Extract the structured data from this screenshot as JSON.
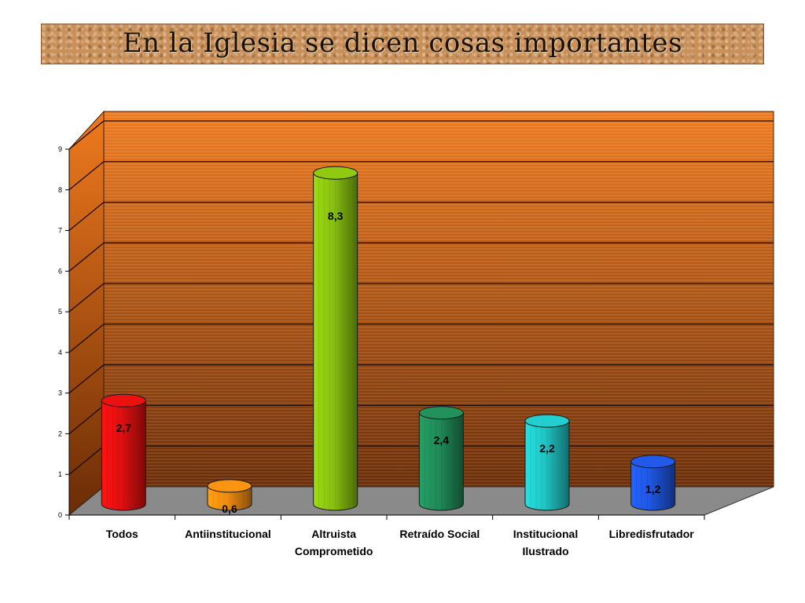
{
  "slide": {
    "title": "En la Iglesia se dicen cosas importantes"
  },
  "chart_data": {
    "type": "bar",
    "title": "",
    "xlabel": "",
    "ylabel": "",
    "categories": [
      "Todos",
      "Antiinstitucional",
      "Altruista Comprometido",
      "Retraído Social",
      "Institucional Ilustrado",
      "Libredisfrutador"
    ],
    "category_lines": [
      [
        "Todos"
      ],
      [
        "Antiinstitucional"
      ],
      [
        "Altruista",
        "Comprometido"
      ],
      [
        "Retraído Social"
      ],
      [
        "Institucional",
        "Ilustrado"
      ],
      [
        "Libredisfrutador"
      ]
    ],
    "values": [
      2.7,
      0.6,
      8.3,
      2.4,
      2.2,
      1.2
    ],
    "value_labels": [
      "2,7",
      "0,6",
      "8,3",
      "2,4",
      "2,2",
      "1,2"
    ],
    "bar_colors": [
      "#e01010",
      "#f08c10",
      "#88c010",
      "#208a58",
      "#20c4c4",
      "#1f56e0"
    ],
    "ylim": [
      0,
      9
    ],
    "yticks": [
      "0",
      "1",
      "2",
      "3",
      "4",
      "5",
      "6",
      "7",
      "8",
      "9"
    ],
    "grid": true,
    "style": "3d-cylinder",
    "wall_colors": [
      "#f07a1e",
      "#6b2c06"
    ],
    "floor_color": "#8a8a8a"
  }
}
